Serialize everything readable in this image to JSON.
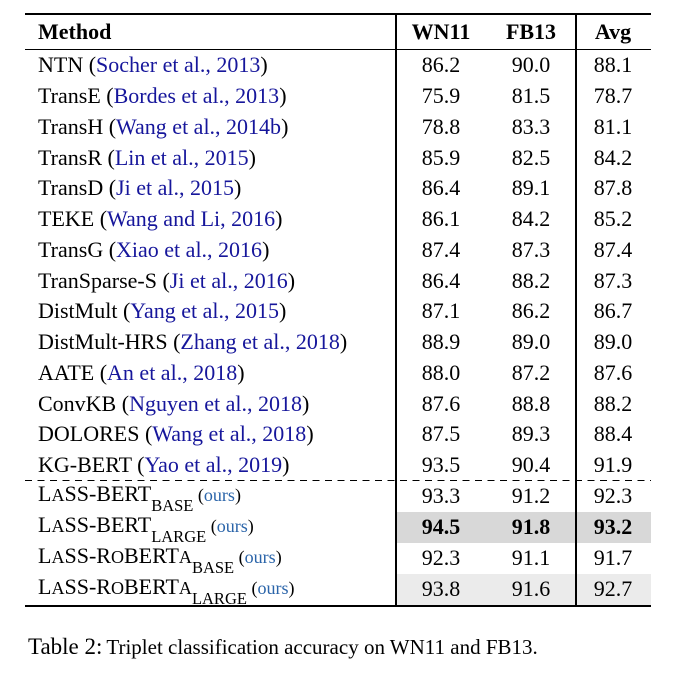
{
  "colors": {
    "citation_blue": "#16169b",
    "ours_blue": "#2a64a9",
    "shade_dark": "#d8d8d8",
    "shade_light": "#ebebeb",
    "rule_black": "#000000"
  },
  "table": {
    "header": {
      "method": "Method",
      "wn11": "WN11",
      "fb13": "FB13",
      "avg": "Avg"
    },
    "rows": [
      {
        "method_parts": [
          {
            "t": "NTN (",
            "s": "plain"
          },
          {
            "t": "Socher et al., 2013",
            "s": "cite"
          },
          {
            "t": ")",
            "s": "plain"
          }
        ],
        "wn11": "86.2",
        "fb13": "90.0",
        "avg": "88.1",
        "bold": false,
        "shade": null,
        "dashed_top": false,
        "ours": false
      },
      {
        "method_parts": [
          {
            "t": "TransE (",
            "s": "plain"
          },
          {
            "t": "Bordes et al., 2013",
            "s": "cite"
          },
          {
            "t": ")",
            "s": "plain"
          }
        ],
        "wn11": "75.9",
        "fb13": "81.5",
        "avg": "78.7",
        "bold": false,
        "shade": null,
        "dashed_top": false,
        "ours": false
      },
      {
        "method_parts": [
          {
            "t": "TransH (",
            "s": "plain"
          },
          {
            "t": "Wang et al., 2014b",
            "s": "cite"
          },
          {
            "t": ")",
            "s": "plain"
          }
        ],
        "wn11": "78.8",
        "fb13": "83.3",
        "avg": "81.1",
        "bold": false,
        "shade": null,
        "dashed_top": false,
        "ours": false
      },
      {
        "method_parts": [
          {
            "t": "TransR (",
            "s": "plain"
          },
          {
            "t": "Lin et al., 2015",
            "s": "cite"
          },
          {
            "t": ")",
            "s": "plain"
          }
        ],
        "wn11": "85.9",
        "fb13": "82.5",
        "avg": "84.2",
        "bold": false,
        "shade": null,
        "dashed_top": false,
        "ours": false
      },
      {
        "method_parts": [
          {
            "t": "TransD (",
            "s": "plain"
          },
          {
            "t": "Ji et al., 2015",
            "s": "cite"
          },
          {
            "t": ")",
            "s": "plain"
          }
        ],
        "wn11": "86.4",
        "fb13": "89.1",
        "avg": "87.8",
        "bold": false,
        "shade": null,
        "dashed_top": false,
        "ours": false
      },
      {
        "method_parts": [
          {
            "t": "TEKE (",
            "s": "plain"
          },
          {
            "t": "Wang and Li, 2016",
            "s": "cite"
          },
          {
            "t": ")",
            "s": "plain"
          }
        ],
        "wn11": "86.1",
        "fb13": "84.2",
        "avg": "85.2",
        "bold": false,
        "shade": null,
        "dashed_top": false,
        "ours": false
      },
      {
        "method_parts": [
          {
            "t": "TransG (",
            "s": "plain"
          },
          {
            "t": "Xiao et al., 2016",
            "s": "cite"
          },
          {
            "t": ")",
            "s": "plain"
          }
        ],
        "wn11": "87.4",
        "fb13": "87.3",
        "avg": "87.4",
        "bold": false,
        "shade": null,
        "dashed_top": false,
        "ours": false
      },
      {
        "method_parts": [
          {
            "t": "TranSparse-S (",
            "s": "plain"
          },
          {
            "t": "Ji et al., 2016",
            "s": "cite"
          },
          {
            "t": ")",
            "s": "plain"
          }
        ],
        "wn11": "86.4",
        "fb13": "88.2",
        "avg": "87.3",
        "bold": false,
        "shade": null,
        "dashed_top": false,
        "ours": false
      },
      {
        "method_parts": [
          {
            "t": "DistMult (",
            "s": "plain"
          },
          {
            "t": "Yang et al., 2015",
            "s": "cite"
          },
          {
            "t": ")",
            "s": "plain"
          }
        ],
        "wn11": "87.1",
        "fb13": "86.2",
        "avg": "86.7",
        "bold": false,
        "shade": null,
        "dashed_top": false,
        "ours": false
      },
      {
        "method_parts": [
          {
            "t": "DistMult-HRS (",
            "s": "plain"
          },
          {
            "t": "Zhang et al., 2018",
            "s": "cite"
          },
          {
            "t": ")",
            "s": "plain"
          }
        ],
        "wn11": "88.9",
        "fb13": "89.0",
        "avg": "89.0",
        "bold": false,
        "shade": null,
        "dashed_top": false,
        "ours": false
      },
      {
        "method_parts": [
          {
            "t": "AATE (",
            "s": "plain"
          },
          {
            "t": "An et al., 2018",
            "s": "cite"
          },
          {
            "t": ")",
            "s": "plain"
          }
        ],
        "wn11": "88.0",
        "fb13": "87.2",
        "avg": "87.6",
        "bold": false,
        "shade": null,
        "dashed_top": false,
        "ours": false
      },
      {
        "method_parts": [
          {
            "t": "ConvKB (",
            "s": "plain"
          },
          {
            "t": "Nguyen et al., 2018",
            "s": "cite"
          },
          {
            "t": ")",
            "s": "plain"
          }
        ],
        "wn11": "87.6",
        "fb13": "88.8",
        "avg": "88.2",
        "bold": false,
        "shade": null,
        "dashed_top": false,
        "ours": false
      },
      {
        "method_parts": [
          {
            "t": "DOLORES (",
            "s": "plain"
          },
          {
            "t": "Wang et al., 2018",
            "s": "cite"
          },
          {
            "t": ")",
            "s": "plain"
          }
        ],
        "wn11": "87.5",
        "fb13": "89.3",
        "avg": "88.4",
        "bold": false,
        "shade": null,
        "dashed_top": false,
        "ours": false
      },
      {
        "method_parts": [
          {
            "t": "KG-BERT (",
            "s": "plain"
          },
          {
            "t": "Yao et al., 2019",
            "s": "cite"
          },
          {
            "t": ")",
            "s": "plain"
          }
        ],
        "wn11": "93.5",
        "fb13": "90.4",
        "avg": "91.9",
        "bold": false,
        "shade": null,
        "dashed_top": false,
        "ours": false
      },
      {
        "method_parts": [
          {
            "t": "L",
            "s": "plain"
          },
          {
            "t": "A",
            "s": "sc"
          },
          {
            "t": "SS-BERT",
            "s": "plain"
          },
          {
            "t": "BASE",
            "s": "sub"
          },
          {
            "t": " (",
            "s": "small"
          },
          {
            "t": "ours",
            "s": "ours"
          },
          {
            "t": ")",
            "s": "small"
          }
        ],
        "wn11": "93.3",
        "fb13": "91.2",
        "avg": "92.3",
        "bold": false,
        "shade": null,
        "dashed_top": true,
        "ours": true
      },
      {
        "method_parts": [
          {
            "t": "L",
            "s": "plain"
          },
          {
            "t": "A",
            "s": "sc"
          },
          {
            "t": "SS-BERT",
            "s": "plain"
          },
          {
            "t": "LARGE",
            "s": "sub"
          },
          {
            "t": " (",
            "s": "small"
          },
          {
            "t": "ours",
            "s": "ours"
          },
          {
            "t": ")",
            "s": "small"
          }
        ],
        "wn11": "94.5",
        "fb13": "91.8",
        "avg": "93.2",
        "bold": true,
        "shade": "dark",
        "dashed_top": false,
        "ours": true
      },
      {
        "method_parts": [
          {
            "t": "L",
            "s": "plain"
          },
          {
            "t": "A",
            "s": "sc"
          },
          {
            "t": "SS-R",
            "s": "plain"
          },
          {
            "t": "O",
            "s": "sc"
          },
          {
            "t": "BERT",
            "s": "plain"
          },
          {
            "t": "A",
            "s": "sc"
          },
          {
            "t": "BASE",
            "s": "sub"
          },
          {
            "t": " (",
            "s": "small"
          },
          {
            "t": "ours",
            "s": "ours"
          },
          {
            "t": ")",
            "s": "small"
          }
        ],
        "wn11": "92.3",
        "fb13": "91.1",
        "avg": "91.7",
        "bold": false,
        "shade": null,
        "dashed_top": false,
        "ours": true
      },
      {
        "method_parts": [
          {
            "t": "L",
            "s": "plain"
          },
          {
            "t": "A",
            "s": "sc"
          },
          {
            "t": "SS-R",
            "s": "plain"
          },
          {
            "t": "O",
            "s": "sc"
          },
          {
            "t": "BERT",
            "s": "plain"
          },
          {
            "t": "A",
            "s": "sc"
          },
          {
            "t": "LARGE",
            "s": "sub"
          },
          {
            "t": " (",
            "s": "small"
          },
          {
            "t": "ours",
            "s": "ours"
          },
          {
            "t": ")",
            "s": "small"
          }
        ],
        "wn11": "93.8",
        "fb13": "91.6",
        "avg": "92.7",
        "bold": false,
        "shade": "light",
        "dashed_top": false,
        "ours": true
      }
    ]
  },
  "caption": {
    "label": "Table 2:",
    "text": "Triplet classification accuracy on WN11 and FB13."
  }
}
